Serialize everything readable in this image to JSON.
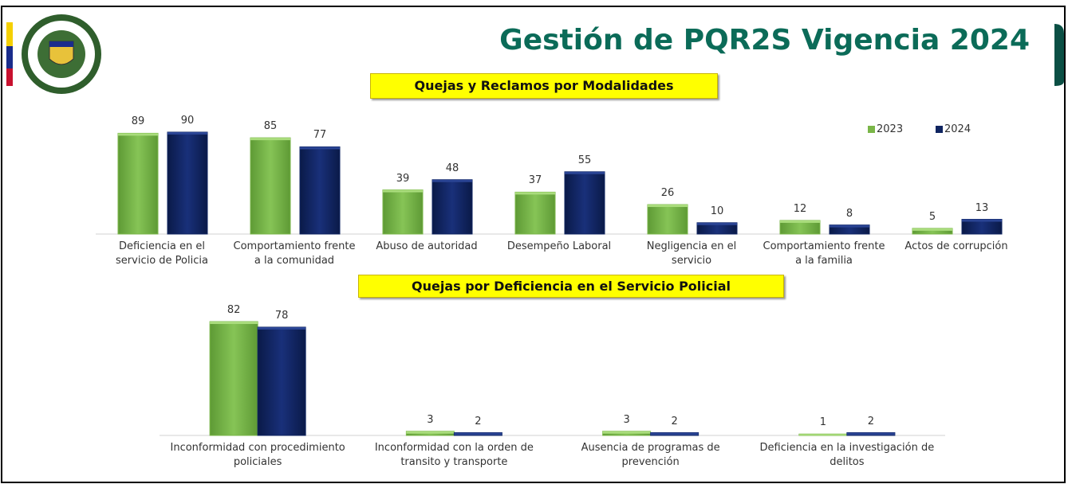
{
  "title": "Gestión de PQR2S Vigencia 2024",
  "chart_data": [
    {
      "type": "bar",
      "title": "Quejas y Reclamos por Modalidades",
      "categories": [
        "Deficiencia en el servicio de Policia",
        "Comportamiento frente a la comunidad",
        "Abuso de autoridad",
        "Desempeño Laboral",
        "Negligencia en el servicio",
        "Comportamiento frente a la familia",
        "Actos de corrupción"
      ],
      "series": [
        {
          "name": "2023",
          "color": "#7ab648",
          "values": [
            89,
            85,
            39,
            37,
            26,
            12,
            5
          ]
        },
        {
          "name": "2024",
          "color": "#0f2460",
          "values": [
            90,
            77,
            48,
            55,
            10,
            8,
            13
          ]
        }
      ],
      "legend": "top-right"
    },
    {
      "type": "bar",
      "title": "Quejas por Deficiencia en el Servicio Policial",
      "categories": [
        "Inconformidad con procedimiento policiales",
        "Inconformidad con la orden de transito y transporte",
        "Ausencia de programas de prevención",
        "Deficiencia en la investigación de delitos"
      ],
      "series": [
        {
          "name": "2023",
          "color": "#7ab648",
          "values": [
            82,
            3,
            3,
            1
          ]
        },
        {
          "name": "2024",
          "color": "#0f2460",
          "values": [
            78,
            2,
            2,
            2
          ]
        }
      ]
    }
  ]
}
